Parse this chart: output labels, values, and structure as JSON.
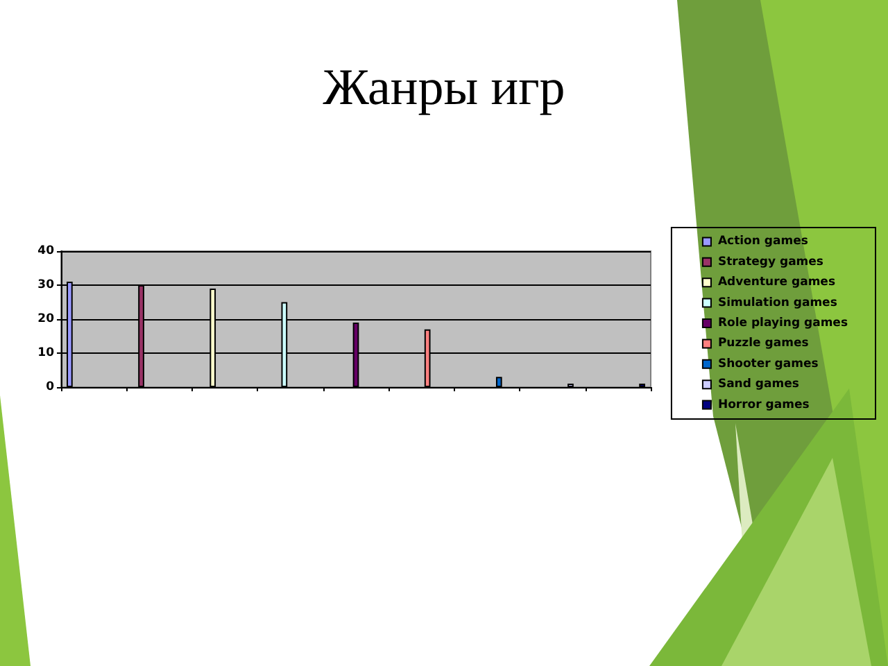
{
  "chart_data": {
    "type": "bar",
    "title": "Жанры игр",
    "categories": [
      null,
      null,
      null,
      null,
      null,
      null,
      null,
      null,
      null
    ],
    "series": [
      {
        "name": "Action games",
        "color": "#9999ff",
        "values": [
          31,
          null,
          null,
          null,
          null,
          null,
          null,
          null,
          null
        ]
      },
      {
        "name": "Strategy games",
        "color": "#993366",
        "values": [
          null,
          30,
          null,
          null,
          null,
          null,
          null,
          null,
          null
        ]
      },
      {
        "name": "Adventure games",
        "color": "#ffffcc",
        "values": [
          null,
          null,
          29,
          null,
          null,
          null,
          null,
          null,
          null
        ]
      },
      {
        "name": "Simulation games",
        "color": "#ccffff",
        "values": [
          null,
          null,
          null,
          25,
          null,
          null,
          null,
          null,
          null
        ]
      },
      {
        "name": "Role playing games",
        "color": "#660066",
        "values": [
          null,
          null,
          null,
          null,
          19,
          null,
          null,
          null,
          null
        ]
      },
      {
        "name": "Puzzle games",
        "color": "#ff8080",
        "values": [
          null,
          null,
          null,
          null,
          null,
          17,
          null,
          null,
          null
        ]
      },
      {
        "name": "Shooter games",
        "color": "#0066cc",
        "values": [
          null,
          null,
          null,
          null,
          null,
          null,
          3,
          null,
          null
        ]
      },
      {
        "name": "Sand games",
        "color": "#ccccff",
        "values": [
          null,
          null,
          null,
          null,
          null,
          null,
          null,
          1,
          null
        ]
      },
      {
        "name": "Horror games",
        "color": "#000080",
        "values": [
          null,
          null,
          null,
          null,
          null,
          null,
          null,
          null,
          1
        ]
      }
    ],
    "ylim": [
      0,
      40
    ],
    "yticks": [
      0,
      10,
      20,
      30,
      40
    ],
    "grid": "y",
    "legend": "right",
    "tick_labels": "y"
  }
}
